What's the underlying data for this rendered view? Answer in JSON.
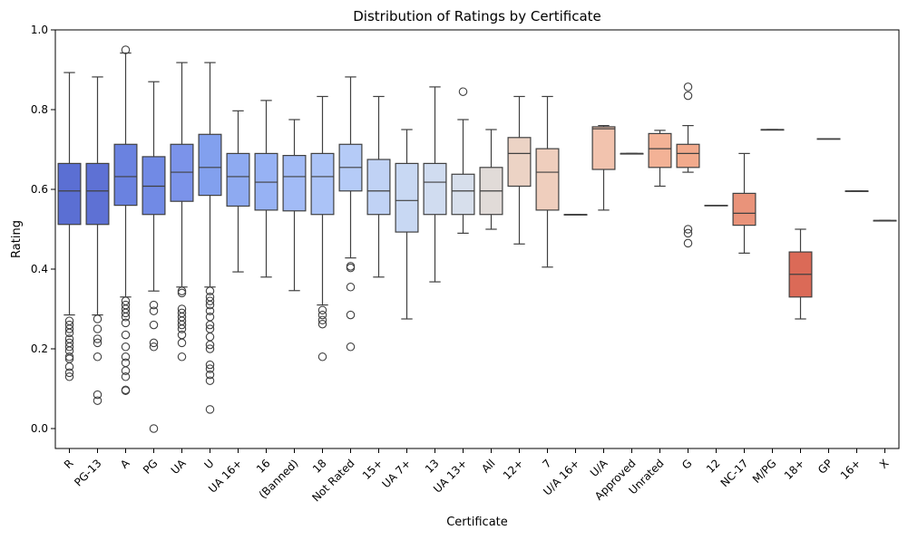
{
  "chart_data": {
    "type": "box",
    "title": "Distribution of Ratings by Certificate",
    "xlabel": "Certificate",
    "ylabel": "Rating",
    "ylim": [
      -0.05,
      1.0
    ],
    "yticks": [
      "0.0",
      "0.2",
      "0.4",
      "0.6",
      "0.8",
      "1.0"
    ],
    "grid": false,
    "categories": [
      "R",
      "PG-13",
      "A",
      "PG",
      "UA",
      "U",
      "UA 16+",
      "16",
      "(Banned)",
      "18",
      "Not Rated",
      "15+",
      "UA 7+",
      "13",
      "UA 13+",
      "All",
      "12+",
      "7",
      "U/A 16+",
      "U/A",
      "Approved",
      "Unrated",
      "G",
      "12",
      "NC-17",
      "M/PG",
      "18+",
      "GP",
      "16+",
      "X"
    ],
    "boxes": [
      {
        "category": "R",
        "color": "#5b6fd3",
        "whislo": 0.285,
        "q1": 0.512,
        "med": 0.596,
        "q3": 0.665,
        "whishi": 0.893,
        "fliers": [
          0.13,
          0.14,
          0.155,
          0.175,
          0.18,
          0.195,
          0.205,
          0.215,
          0.225,
          0.24,
          0.25,
          0.26,
          0.27
        ]
      },
      {
        "category": "PG-13",
        "color": "#5e71d4",
        "whislo": 0.285,
        "q1": 0.512,
        "med": 0.596,
        "q3": 0.665,
        "whishi": 0.882,
        "fliers": [
          0.07,
          0.085,
          0.18,
          0.215,
          0.225,
          0.25,
          0.275
        ]
      },
      {
        "category": "A",
        "color": "#6a82e0",
        "whislo": 0.33,
        "q1": 0.56,
        "med": 0.632,
        "q3": 0.713,
        "whishi": 0.942,
        "fliers": [
          0.095,
          0.097,
          0.13,
          0.145,
          0.165,
          0.18,
          0.205,
          0.235,
          0.265,
          0.28,
          0.29,
          0.3,
          0.31,
          0.32,
          0.95
        ]
      },
      {
        "category": "PG",
        "color": "#718ae5",
        "whislo": 0.345,
        "q1": 0.537,
        "med": 0.608,
        "q3": 0.682,
        "whishi": 0.87,
        "fliers": [
          0.0,
          0.205,
          0.215,
          0.26,
          0.295,
          0.31
        ]
      },
      {
        "category": "UA",
        "color": "#7b93ea",
        "whislo": 0.355,
        "q1": 0.57,
        "med": 0.643,
        "q3": 0.713,
        "whishi": 0.918,
        "fliers": [
          0.18,
          0.215,
          0.235,
          0.25,
          0.26,
          0.27,
          0.28,
          0.29,
          0.3,
          0.34,
          0.345
        ]
      },
      {
        "category": "U",
        "color": "#82a0ee",
        "whislo": 0.355,
        "q1": 0.585,
        "med": 0.655,
        "q3": 0.738,
        "whishi": 0.918,
        "fliers": [
          0.048,
          0.12,
          0.135,
          0.15,
          0.16,
          0.2,
          0.21,
          0.23,
          0.25,
          0.26,
          0.28,
          0.295,
          0.31,
          0.32,
          0.33,
          0.345
        ]
      },
      {
        "category": "UA 16+",
        "color": "#8eaaf1",
        "whislo": 0.393,
        "q1": 0.558,
        "med": 0.632,
        "q3": 0.69,
        "whishi": 0.797,
        "fliers": []
      },
      {
        "category": "16",
        "color": "#97b2f4",
        "whislo": 0.38,
        "q1": 0.548,
        "med": 0.618,
        "q3": 0.69,
        "whishi": 0.823,
        "fliers": []
      },
      {
        "category": "(Banned)",
        "color": "#a2bbf6",
        "whislo": 0.346,
        "q1": 0.546,
        "med": 0.632,
        "q3": 0.685,
        "whishi": 0.775,
        "fliers": []
      },
      {
        "category": "18",
        "color": "#abc3f7",
        "whislo": 0.31,
        "q1": 0.537,
        "med": 0.632,
        "q3": 0.69,
        "whishi": 0.833,
        "fliers": [
          0.18,
          0.262,
          0.272,
          0.285,
          0.297
        ]
      },
      {
        "category": "Not Rated",
        "color": "#b5cbf7",
        "whislo": 0.428,
        "q1": 0.596,
        "med": 0.655,
        "q3": 0.713,
        "whishi": 0.882,
        "fliers": [
          0.205,
          0.285,
          0.355,
          0.403,
          0.407
        ]
      },
      {
        "category": "15+",
        "color": "#c0d2f5",
        "whislo": 0.38,
        "q1": 0.537,
        "med": 0.596,
        "q3": 0.675,
        "whishi": 0.833,
        "fliers": []
      },
      {
        "category": "UA 7+",
        "color": "#c8d8f3",
        "whislo": 0.275,
        "q1": 0.493,
        "med": 0.572,
        "q3": 0.665,
        "whishi": 0.75,
        "fliers": []
      },
      {
        "category": "13",
        "color": "#d0dcf0",
        "whislo": 0.368,
        "q1": 0.537,
        "med": 0.618,
        "q3": 0.665,
        "whishi": 0.857,
        "fliers": []
      },
      {
        "category": "UA 13+",
        "color": "#d7dfec",
        "whislo": 0.49,
        "q1": 0.537,
        "med": 0.596,
        "q3": 0.638,
        "whishi": 0.775,
        "fliers": [
          0.845
        ]
      },
      {
        "category": "All",
        "color": "#e1dbd8",
        "whislo": 0.5,
        "q1": 0.537,
        "med": 0.596,
        "q3": 0.655,
        "whishi": 0.75,
        "fliers": []
      },
      {
        "category": "12+",
        "color": "#ecd3c5",
        "whislo": 0.463,
        "q1": 0.608,
        "med": 0.69,
        "q3": 0.73,
        "whishi": 0.833,
        "fliers": []
      },
      {
        "category": "7",
        "color": "#efcebd",
        "whislo": 0.405,
        "q1": 0.548,
        "med": 0.643,
        "q3": 0.702,
        "whishi": 0.833,
        "fliers": []
      },
      {
        "category": "U/A 16+",
        "color": "#f0c9b5",
        "whislo": 0.537,
        "q1": 0.537,
        "med": 0.537,
        "q3": 0.537,
        "whishi": 0.537,
        "fliers": []
      },
      {
        "category": "U/A",
        "color": "#f2c3ae",
        "whislo": 0.548,
        "q1": 0.65,
        "med": 0.752,
        "q3": 0.757,
        "whishi": 0.76,
        "fliers": []
      },
      {
        "category": "Approved",
        "color": "#f3b89f",
        "whislo": 0.69,
        "q1": 0.69,
        "med": 0.69,
        "q3": 0.69,
        "whishi": 0.69,
        "fliers": []
      },
      {
        "category": "Unrated",
        "color": "#f3b296",
        "whislo": 0.608,
        "q1": 0.655,
        "med": 0.702,
        "q3": 0.74,
        "whishi": 0.748,
        "fliers": []
      },
      {
        "category": "G",
        "color": "#f2aa8c",
        "whislo": 0.643,
        "q1": 0.655,
        "med": 0.69,
        "q3": 0.713,
        "whishi": 0.76,
        "fliers": [
          0.465,
          0.49,
          0.5,
          0.835,
          0.857
        ]
      },
      {
        "category": "12",
        "color": "#efa082",
        "whislo": 0.56,
        "q1": 0.56,
        "med": 0.56,
        "q3": 0.56,
        "whishi": 0.56,
        "fliers": []
      },
      {
        "category": "NC-17",
        "color": "#e9937a",
        "whislo": 0.44,
        "q1": 0.51,
        "med": 0.54,
        "q3": 0.59,
        "whishi": 0.69,
        "fliers": []
      },
      {
        "category": "M/PG",
        "color": "#e8896f",
        "whislo": 0.75,
        "q1": 0.75,
        "med": 0.75,
        "q3": 0.75,
        "whishi": 0.75,
        "fliers": []
      },
      {
        "category": "18+",
        "color": "#db6a57",
        "whislo": 0.275,
        "q1": 0.33,
        "med": 0.387,
        "q3": 0.443,
        "whishi": 0.5,
        "fliers": []
      },
      {
        "category": "GP",
        "color": "#da6f5b",
        "whislo": 0.727,
        "q1": 0.727,
        "med": 0.727,
        "q3": 0.727,
        "whishi": 0.727,
        "fliers": []
      },
      {
        "category": "16+",
        "color": "#d4604e",
        "whislo": 0.596,
        "q1": 0.596,
        "med": 0.596,
        "q3": 0.596,
        "whishi": 0.596,
        "fliers": []
      },
      {
        "category": "X",
        "color": "#cc5447",
        "whislo": 0.522,
        "q1": 0.522,
        "med": 0.522,
        "q3": 0.522,
        "whishi": 0.522,
        "fliers": []
      }
    ]
  }
}
